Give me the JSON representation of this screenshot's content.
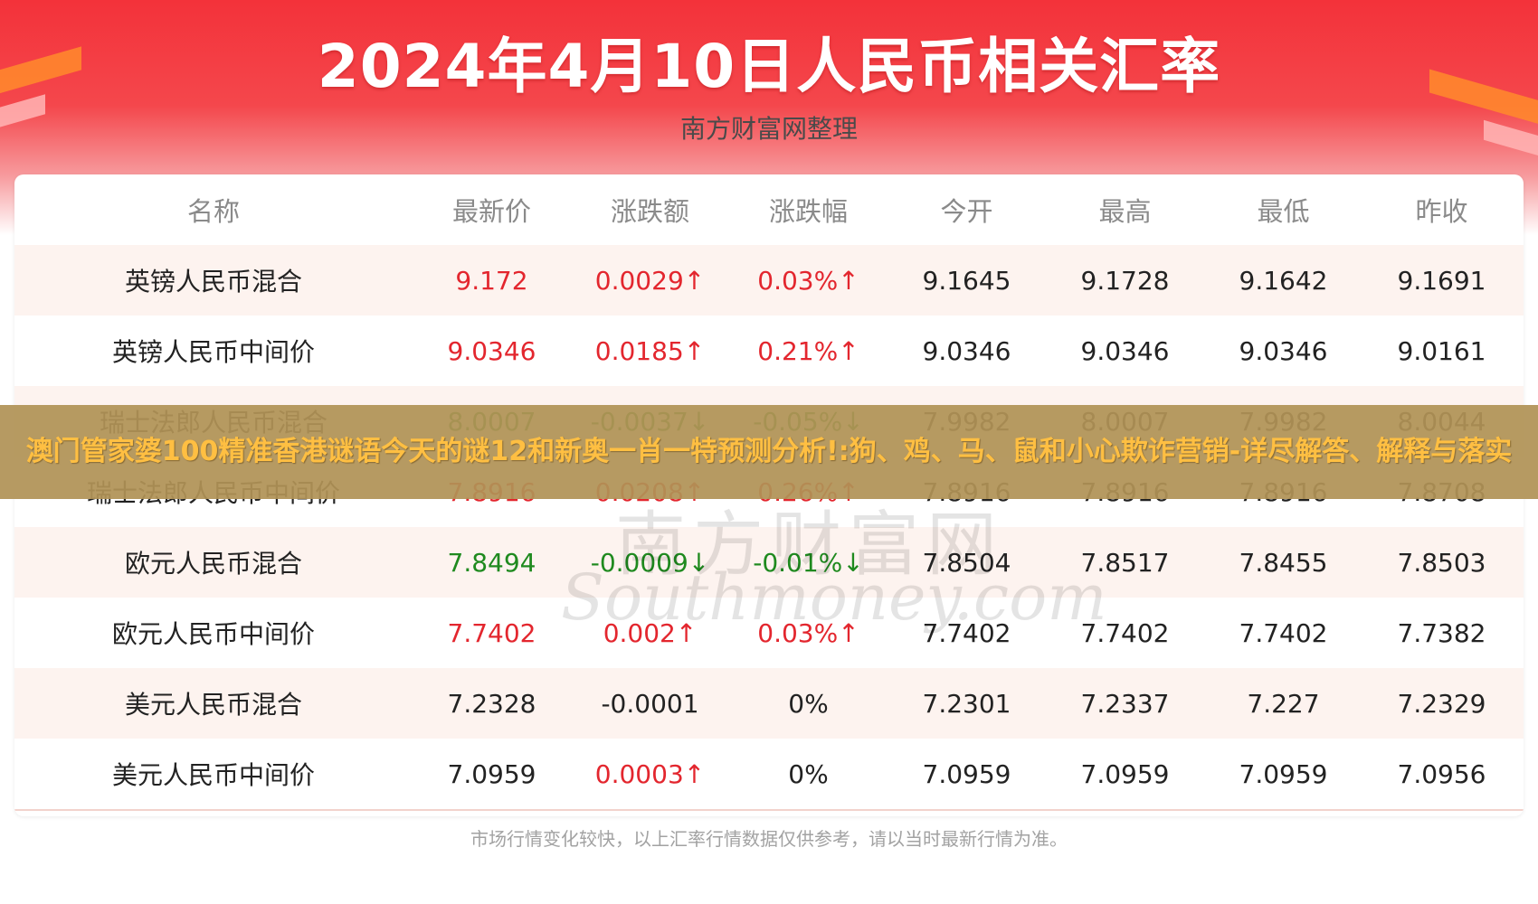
{
  "header": {
    "title": "2024年4月10日人民币相关汇率",
    "subtitle": "南方财富网整理"
  },
  "table": {
    "columns": [
      "名称",
      "最新价",
      "涨跌额",
      "涨跌幅",
      "今开",
      "最高",
      "最低",
      "昨收"
    ],
    "rows": [
      {
        "name": "英镑人民币混合",
        "latest": "9.172",
        "change": "0.0029↑",
        "pct": "0.03%↑",
        "open": "9.1645",
        "high": "9.1728",
        "low": "9.1642",
        "prev": "9.1691",
        "trend": "up"
      },
      {
        "name": "英镑人民币中间价",
        "latest": "9.0346",
        "change": "0.0185↑",
        "pct": "0.21%↑",
        "open": "9.0346",
        "high": "9.0346",
        "low": "9.0346",
        "prev": "9.0161",
        "trend": "up"
      },
      {
        "name": "瑞士法郎人民币混合",
        "latest": "8.0007",
        "change": "-0.0037↓",
        "pct": "-0.05%↓",
        "open": "7.9982",
        "high": "8.0007",
        "low": "7.9982",
        "prev": "8.0044",
        "trend": "down"
      },
      {
        "name": "瑞士法郎人民币中间价",
        "latest": "7.8916",
        "change": "0.0208↑",
        "pct": "0.26%↑",
        "open": "7.8916",
        "high": "7.8916",
        "low": "7.8916",
        "prev": "7.8708",
        "trend": "up"
      },
      {
        "name": "欧元人民币混合",
        "latest": "7.8494",
        "change": "-0.0009↓",
        "pct": "-0.01%↓",
        "open": "7.8504",
        "high": "7.8517",
        "low": "7.8455",
        "prev": "7.8503",
        "trend": "down"
      },
      {
        "name": "欧元人民币中间价",
        "latest": "7.7402",
        "change": "0.002↑",
        "pct": "0.03%↑",
        "open": "7.7402",
        "high": "7.7402",
        "low": "7.7402",
        "prev": "7.7382",
        "trend": "up"
      },
      {
        "name": "美元人民币混合",
        "latest": "7.2328",
        "change": "-0.0001",
        "pct": "0%",
        "open": "7.2301",
        "high": "7.2337",
        "low": "7.227",
        "prev": "7.2329",
        "trend": "flat"
      },
      {
        "name": "美元人民币中间价",
        "latest": "7.0959",
        "change": "0.0003↑",
        "pct": "0%",
        "open": "7.0959",
        "high": "7.0959",
        "low": "7.0959",
        "prev": "7.0956",
        "trend": "up",
        "pct_trend": "flat",
        "latest_trend": "flat"
      }
    ]
  },
  "footer": {
    "disclaimer": "市场行情变化较快，以上汇率行情数据仅供参考，请以当时最新行情为准。"
  },
  "watermark": {
    "cn": "南方财富网",
    "en": "Southmoney.com"
  },
  "banner": {
    "text": "澳门管家婆100精准香港谜语今天的谜12和新奥一肖一特预测分析!:狗、鸡、马、鼠和小心欺诈营销-详尽解答、解释与落实"
  },
  "colors": {
    "up": "#e3262e",
    "down": "#1f8a1f",
    "header_red": "#f3323a",
    "row_alt": "#fdf3ef",
    "banner_bg": "#b09256",
    "banner_text": "#ffbf42"
  }
}
